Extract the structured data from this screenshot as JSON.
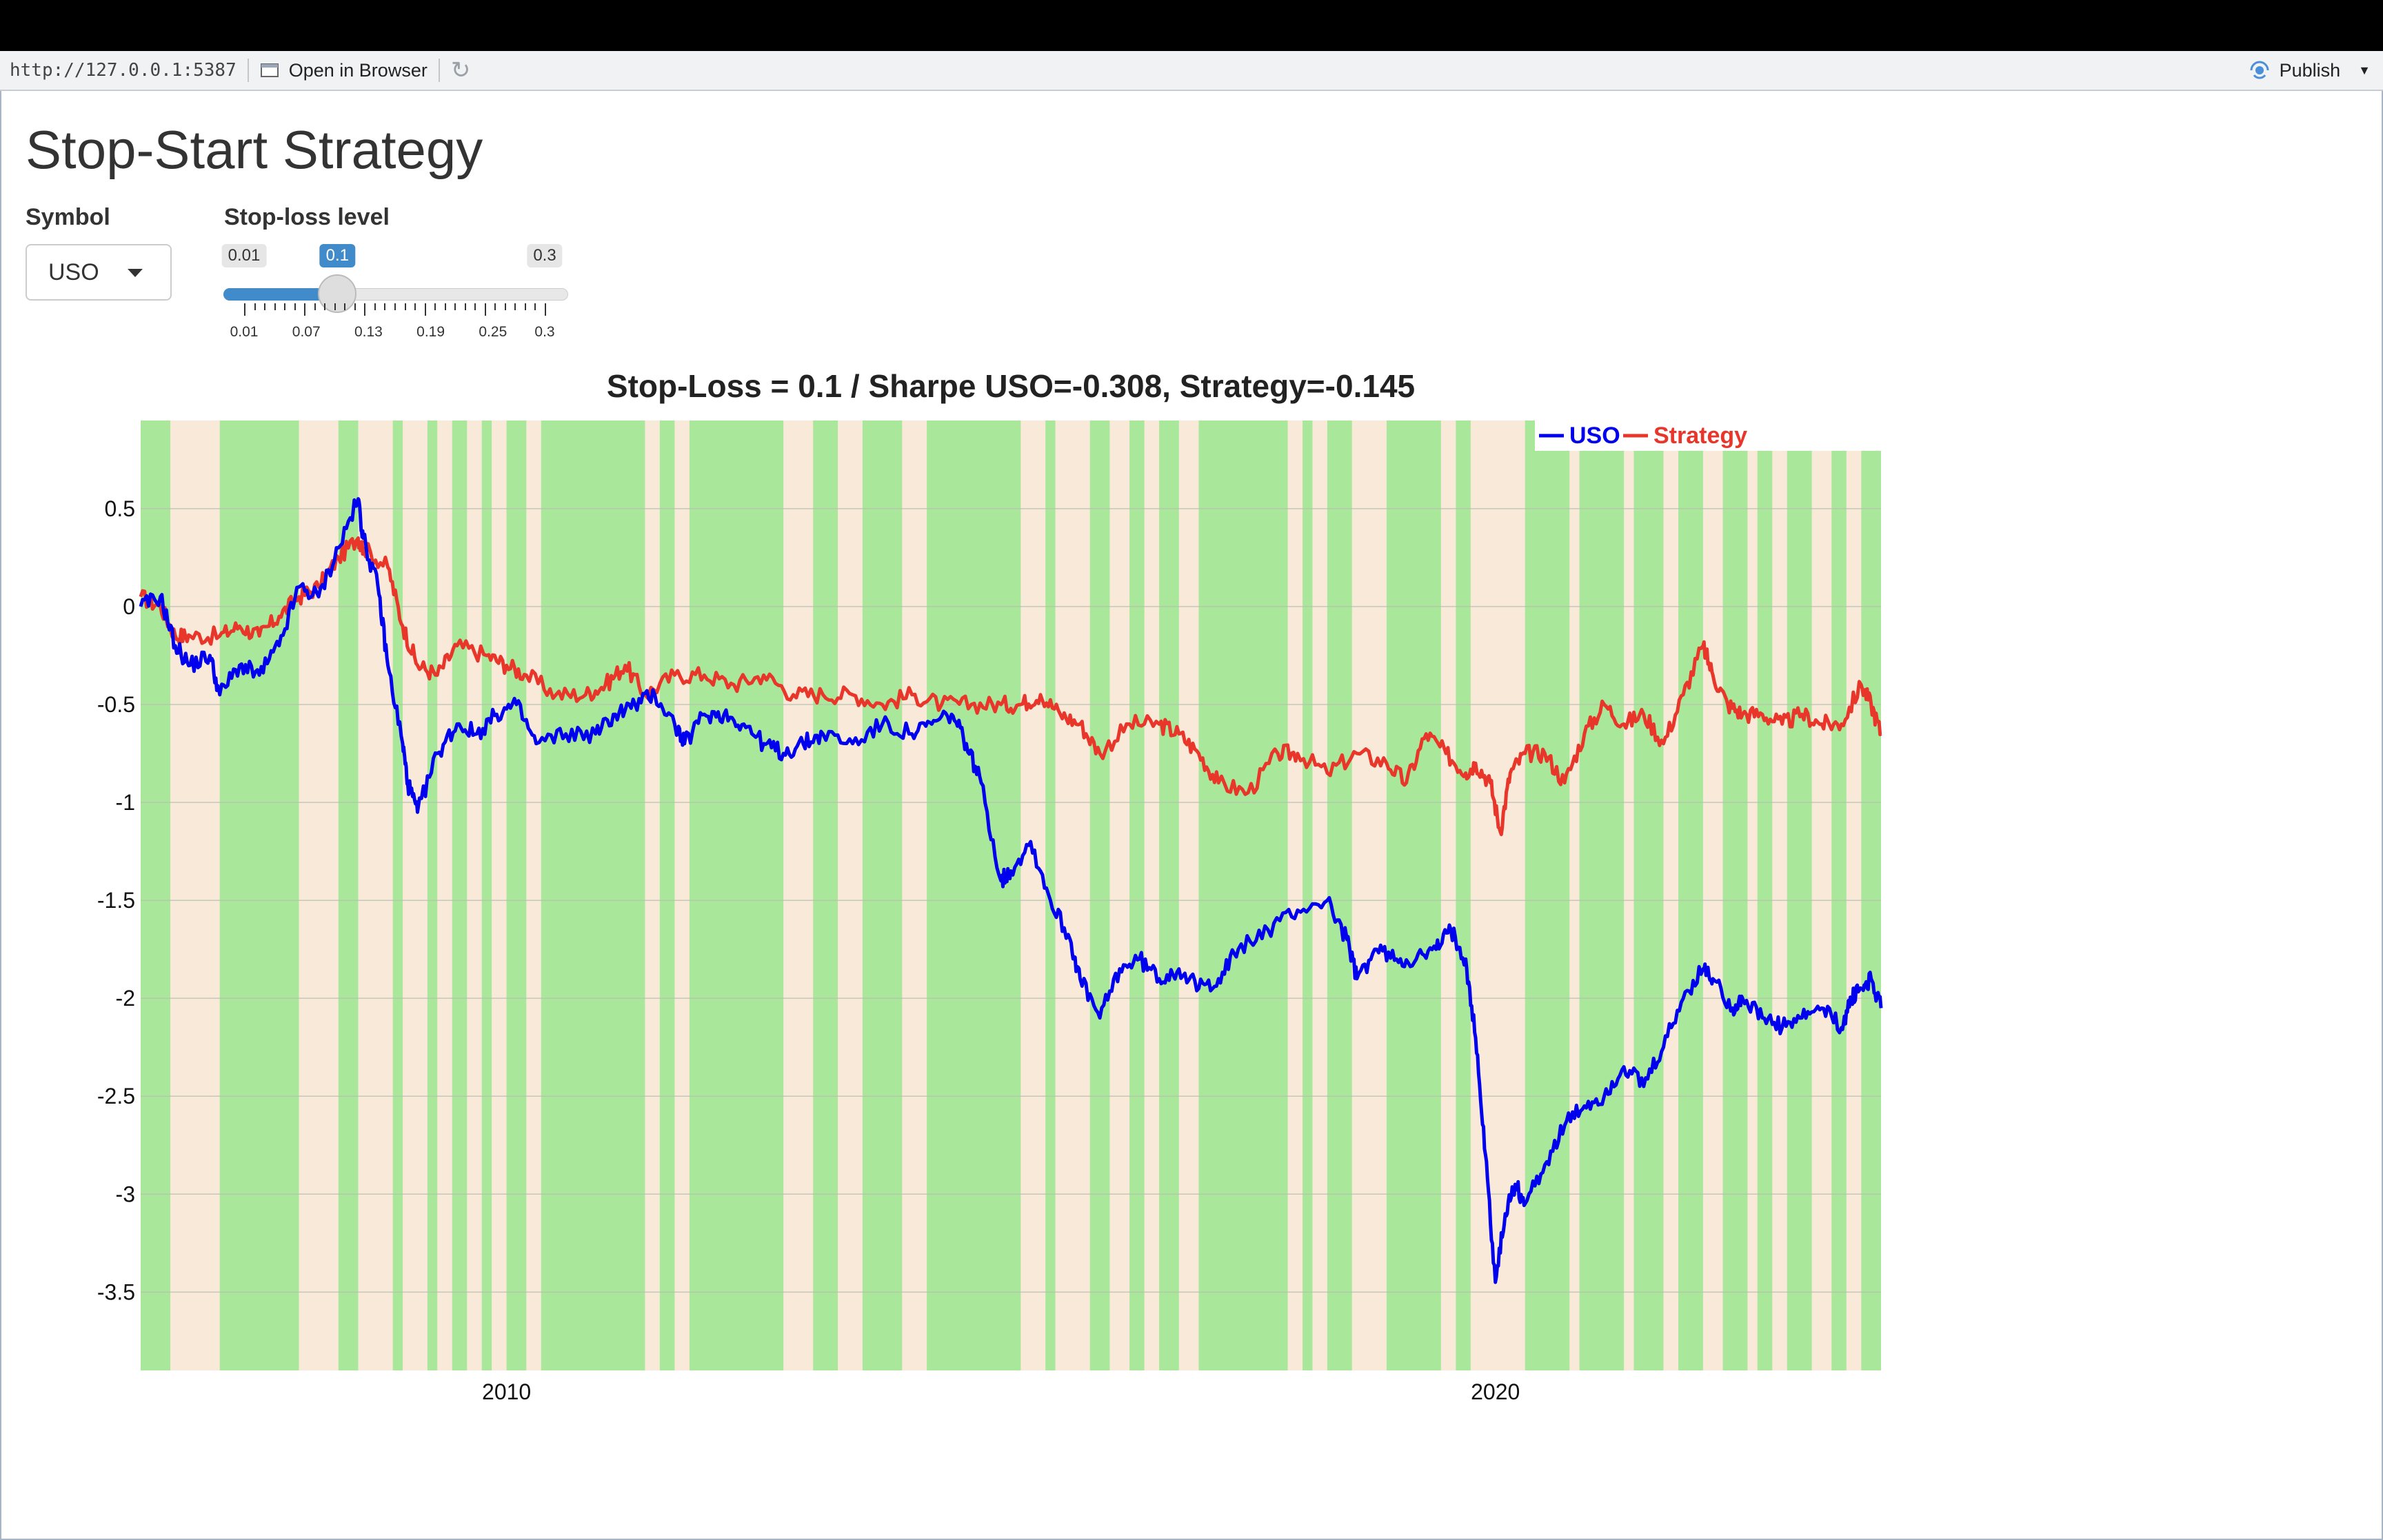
{
  "viewer": {
    "url": "http://127.0.0.1:5387",
    "open_in_browser": "Open in Browser",
    "publish": "Publish"
  },
  "page": {
    "title": "Stop-Start Strategy"
  },
  "controls": {
    "symbol_label": "Symbol",
    "symbol_value": "USO",
    "stop_label": "Stop-loss level",
    "slider": {
      "min": 0.01,
      "max": 0.3,
      "value": 0.1,
      "min_text": "0.01",
      "max_text": "0.3",
      "value_text": "0.1",
      "tick_labels": [
        "0.01",
        "0.07",
        "0.13",
        "0.19",
        "0.25",
        "0.3"
      ],
      "tick_values": [
        0.01,
        0.07,
        0.13,
        0.19,
        0.25,
        0.3
      ]
    }
  },
  "colors": {
    "uso": "#0000ee",
    "strategy": "#e8362b",
    "on_region": "#a9e89a",
    "off_region": "#f8e9d9",
    "accent": "#428bca"
  },
  "chart_data": {
    "type": "line",
    "title": "Stop-Loss = 0.1 / Sharpe USO=-0.308, Strategy=-0.145",
    "xlim": [
      2006.3,
      2023.9
    ],
    "ylim": [
      -3.9,
      0.95
    ],
    "x_ticks": [
      2010,
      2020
    ],
    "x_tick_labels": [
      "2010",
      "2020"
    ],
    "y_ticks": [
      0.5,
      0,
      -0.5,
      -1,
      -1.5,
      -2,
      -2.5,
      -3,
      -3.5
    ],
    "y_tick_labels": [
      "0.5",
      "0",
      "-0.5",
      "-1",
      "-1.5",
      "-2",
      "-2.5",
      "-3",
      "-3.5"
    ],
    "grid": true,
    "legend_position": "top-right",
    "background_bands": "green = strategy invested, beige = strategy stopped out",
    "invested_periods": [
      [
        2006.3,
        2006.6
      ],
      [
        2007.1,
        2007.9
      ],
      [
        2008.3,
        2008.5
      ],
      [
        2008.85,
        2008.95
      ],
      [
        2009.2,
        2009.3
      ],
      [
        2009.45,
        2009.6
      ],
      [
        2009.75,
        2009.85
      ],
      [
        2010.0,
        2010.2
      ],
      [
        2010.35,
        2011.4
      ],
      [
        2011.55,
        2011.7
      ],
      [
        2011.85,
        2012.8
      ],
      [
        2013.1,
        2013.35
      ],
      [
        2013.6,
        2014.0
      ],
      [
        2014.25,
        2015.2
      ],
      [
        2015.45,
        2015.55
      ],
      [
        2015.9,
        2016.1
      ],
      [
        2016.3,
        2016.45
      ],
      [
        2016.6,
        2016.8
      ],
      [
        2017.0,
        2017.9
      ],
      [
        2018.05,
        2018.15
      ],
      [
        2018.3,
        2018.55
      ],
      [
        2018.9,
        2019.45
      ],
      [
        2019.6,
        2019.75
      ],
      [
        2020.3,
        2020.75
      ],
      [
        2020.85,
        2021.3
      ],
      [
        2021.4,
        2021.7
      ],
      [
        2021.85,
        2022.1
      ],
      [
        2022.3,
        2022.55
      ],
      [
        2022.65,
        2022.8
      ],
      [
        2022.95,
        2023.2
      ],
      [
        2023.4,
        2023.55
      ],
      [
        2023.7,
        2023.9
      ]
    ],
    "series": [
      {
        "name": "USO",
        "x": [
          2006.3,
          2006.5,
          2006.65,
          2006.8,
          2007.0,
          2007.1,
          2007.3,
          2007.5,
          2007.7,
          2007.9,
          2008.1,
          2008.3,
          2008.5,
          2008.55,
          2008.7,
          2008.8,
          2008.95,
          2009.0,
          2009.1,
          2009.3,
          2009.5,
          2009.7,
          2009.9,
          2010.1,
          2010.3,
          2010.6,
          2010.9,
          2011.1,
          2011.3,
          2011.5,
          2011.7,
          2011.8,
          2012.0,
          2012.2,
          2012.4,
          2012.6,
          2012.8,
          2013.0,
          2013.2,
          2013.5,
          2013.8,
          2014.1,
          2014.3,
          2014.5,
          2014.65,
          2014.8,
          2015.0,
          2015.1,
          2015.3,
          2015.5,
          2015.7,
          2015.8,
          2016.0,
          2016.2,
          2016.4,
          2016.6,
          2016.8,
          2017.0,
          2017.2,
          2017.4,
          2017.7,
          2018.0,
          2018.3,
          2018.5,
          2018.6,
          2018.8,
          2019.0,
          2019.2,
          2019.4,
          2019.55,
          2019.7,
          2019.8,
          2019.9,
          2020.0,
          2020.1,
          2020.2,
          2020.3,
          2020.5,
          2020.7,
          2020.9,
          2021.1,
          2021.3,
          2021.5,
          2021.7,
          2021.9,
          2022.1,
          2022.2,
          2022.4,
          2022.5,
          2022.7,
          2022.9,
          2023.1,
          2023.3,
          2023.5,
          2023.6,
          2023.7,
          2023.8,
          2023.9
        ],
        "values": [
          0.0,
          0.05,
          -0.2,
          -0.3,
          -0.25,
          -0.45,
          -0.3,
          -0.35,
          -0.2,
          0.1,
          0.05,
          0.3,
          0.55,
          0.35,
          0.1,
          -0.3,
          -0.7,
          -0.9,
          -1.05,
          -0.75,
          -0.6,
          -0.65,
          -0.55,
          -0.5,
          -0.7,
          -0.65,
          -0.65,
          -0.55,
          -0.5,
          -0.45,
          -0.6,
          -0.7,
          -0.55,
          -0.55,
          -0.6,
          -0.7,
          -0.75,
          -0.7,
          -0.65,
          -0.7,
          -0.6,
          -0.65,
          -0.6,
          -0.55,
          -0.7,
          -0.9,
          -1.4,
          -1.35,
          -1.2,
          -1.5,
          -1.7,
          -1.9,
          -2.1,
          -1.85,
          -1.8,
          -1.9,
          -1.85,
          -1.95,
          -1.9,
          -1.75,
          -1.65,
          -1.55,
          -1.5,
          -1.7,
          -1.9,
          -1.75,
          -1.8,
          -1.8,
          -1.75,
          -1.65,
          -1.8,
          -2.2,
          -2.8,
          -3.45,
          -3.1,
          -2.95,
          -3.05,
          -2.85,
          -2.65,
          -2.55,
          -2.5,
          -2.35,
          -2.45,
          -2.25,
          -2.0,
          -1.85,
          -1.9,
          -2.05,
          -2.0,
          -2.1,
          -2.15,
          -2.1,
          -2.05,
          -2.15,
          -2.0,
          -1.95,
          -1.9,
          -2.05
        ]
      },
      {
        "name": "Strategy",
        "x": [
          2006.3,
          2006.5,
          2006.65,
          2006.8,
          2007.1,
          2007.3,
          2007.5,
          2007.7,
          2007.9,
          2008.1,
          2008.3,
          2008.5,
          2008.55,
          2008.8,
          2008.95,
          2009.1,
          2009.3,
          2009.5,
          2009.8,
          2010.0,
          2010.2,
          2010.5,
          2010.8,
          2011.0,
          2011.2,
          2011.4,
          2011.7,
          2012.0,
          2012.3,
          2012.6,
          2012.9,
          2013.2,
          2013.5,
          2013.8,
          2014.1,
          2014.4,
          2014.7,
          2015.0,
          2015.2,
          2015.4,
          2015.6,
          2015.8,
          2016.0,
          2016.3,
          2016.6,
          2016.8,
          2017.0,
          2017.2,
          2017.5,
          2017.8,
          2018.0,
          2018.3,
          2018.6,
          2018.9,
          2019.1,
          2019.3,
          2019.5,
          2019.7,
          2019.8,
          2019.95,
          2020.05,
          2020.15,
          2020.3,
          2020.5,
          2020.7,
          2020.9,
          2021.1,
          2021.3,
          2021.5,
          2021.7,
          2021.9,
          2022.1,
          2022.2,
          2022.35,
          2022.5,
          2022.7,
          2022.9,
          2023.1,
          2023.3,
          2023.5,
          2023.7,
          2023.8,
          2023.9
        ],
        "values": [
          0.05,
          0.0,
          -0.15,
          -0.15,
          -0.15,
          -0.1,
          -0.15,
          -0.05,
          0.05,
          0.1,
          0.25,
          0.35,
          0.3,
          0.2,
          -0.1,
          -0.3,
          -0.35,
          -0.2,
          -0.25,
          -0.3,
          -0.35,
          -0.45,
          -0.45,
          -0.4,
          -0.3,
          -0.45,
          -0.35,
          -0.35,
          -0.4,
          -0.35,
          -0.45,
          -0.45,
          -0.45,
          -0.5,
          -0.45,
          -0.5,
          -0.5,
          -0.5,
          -0.5,
          -0.45,
          -0.55,
          -0.6,
          -0.75,
          -0.6,
          -0.6,
          -0.65,
          -0.75,
          -0.9,
          -0.95,
          -0.75,
          -0.75,
          -0.85,
          -0.75,
          -0.8,
          -0.9,
          -0.65,
          -0.75,
          -0.85,
          -0.8,
          -0.9,
          -1.15,
          -0.85,
          -0.75,
          -0.75,
          -0.9,
          -0.65,
          -0.5,
          -0.6,
          -0.55,
          -0.7,
          -0.45,
          -0.2,
          -0.35,
          -0.5,
          -0.55,
          -0.55,
          -0.6,
          -0.55,
          -0.6,
          -0.6,
          -0.4,
          -0.5,
          -0.65
        ]
      }
    ]
  }
}
